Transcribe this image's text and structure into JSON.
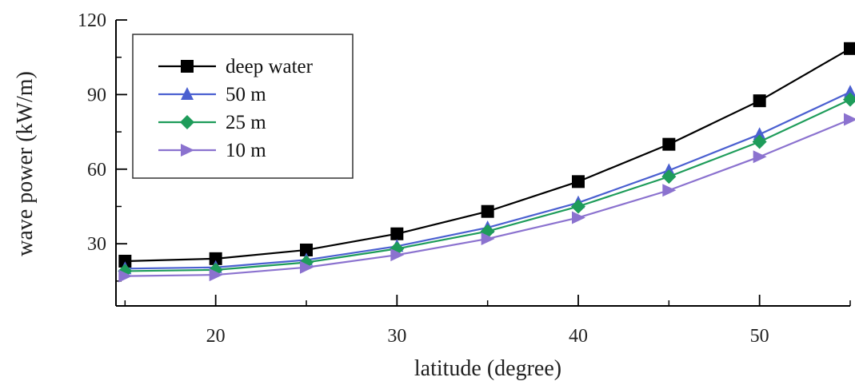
{
  "chart_data": {
    "type": "line",
    "xlabel": "latitude (degree)",
    "ylabel": "wave power (kW/m)",
    "xlim": [
      14.5,
      55
    ],
    "ylim": [
      5,
      120
    ],
    "x": [
      15,
      20,
      25,
      30,
      35,
      40,
      45,
      50,
      55
    ],
    "x_ticks": [
      "20",
      "30",
      "40",
      "50"
    ],
    "y_ticks": [
      "30",
      "60",
      "90",
      "120"
    ],
    "grid": false,
    "legend_position": "top-left",
    "series": [
      {
        "name": "deep water",
        "color": "#000000",
        "marker": "square",
        "values": [
          23,
          24,
          27.5,
          34,
          43,
          55,
          70,
          87.5,
          108.5
        ]
      },
      {
        "name": "50 m",
        "color": "#4a5fd0",
        "marker": "triangle-up",
        "values": [
          20,
          20.5,
          23.5,
          29,
          36.5,
          46.5,
          59.5,
          74,
          91
        ]
      },
      {
        "name": "25 m",
        "color": "#1e9c5a",
        "marker": "diamond",
        "values": [
          19,
          19.5,
          22.5,
          28,
          35,
          45,
          57,
          71,
          88
        ]
      },
      {
        "name": "10 m",
        "color": "#8b72cf",
        "marker": "triangle-right",
        "values": [
          17,
          17.5,
          20.5,
          25.5,
          32,
          40.5,
          51.5,
          65,
          80
        ]
      }
    ]
  }
}
